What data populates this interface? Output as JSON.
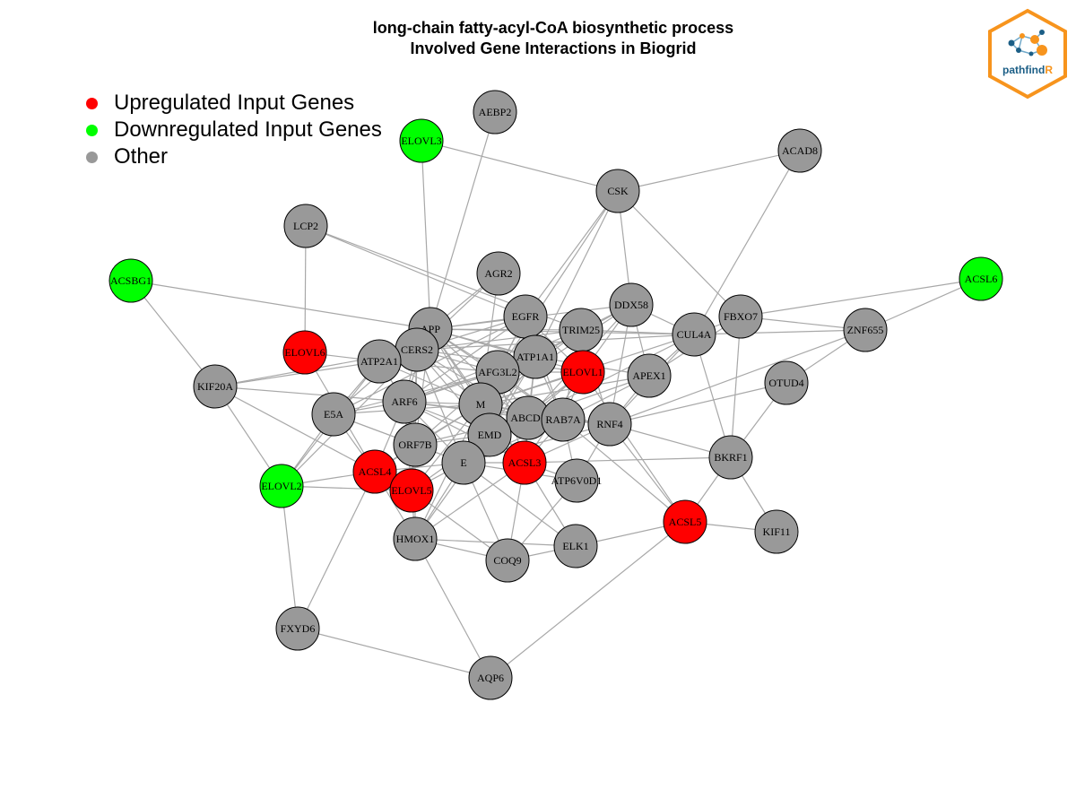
{
  "title": {
    "line1": "long-chain fatty-acyl-CoA biosynthetic process",
    "line2": "Involved Gene Interactions in Biogrid"
  },
  "legend": [
    {
      "label": "Upregulated Input Genes",
      "color": "#ff0000"
    },
    {
      "label": "Downregulated Input Genes",
      "color": "#00ff00"
    },
    {
      "label": "Other",
      "color": "#999999"
    }
  ],
  "logo": {
    "text_main": "pathfind",
    "text_accent": "R",
    "border_color": "#f7941d",
    "text_color": "#1b5e86"
  },
  "node_colors": {
    "up": "#ff0000",
    "down": "#00ff00",
    "other": "#999999"
  },
  "nodes": [
    {
      "id": "AEBP2",
      "type": "other"
    },
    {
      "id": "ELOVL3",
      "type": "down"
    },
    {
      "id": "ACAD8",
      "type": "other"
    },
    {
      "id": "CSK",
      "type": "other"
    },
    {
      "id": "LCP2",
      "type": "other"
    },
    {
      "id": "ACSBG1",
      "type": "down"
    },
    {
      "id": "ACSL6",
      "type": "down"
    },
    {
      "id": "AGR2",
      "type": "other"
    },
    {
      "id": "DDX58",
      "type": "other"
    },
    {
      "id": "EGFR",
      "type": "other"
    },
    {
      "id": "FBXO7",
      "type": "other"
    },
    {
      "id": "APP",
      "type": "other"
    },
    {
      "id": "TRIM25",
      "type": "other"
    },
    {
      "id": "CUL4A",
      "type": "other"
    },
    {
      "id": "ZNF655",
      "type": "other"
    },
    {
      "id": "ELOVL6",
      "type": "up"
    },
    {
      "id": "CERS2",
      "type": "other"
    },
    {
      "id": "ATP2A1",
      "type": "other"
    },
    {
      "id": "ATP1A1",
      "type": "other"
    },
    {
      "id": "AFG3L2",
      "type": "other"
    },
    {
      "id": "ELOVL1",
      "type": "up"
    },
    {
      "id": "APEX1",
      "type": "other"
    },
    {
      "id": "OTUD4",
      "type": "other"
    },
    {
      "id": "KIF20A",
      "type": "other"
    },
    {
      "id": "ARF6",
      "type": "other"
    },
    {
      "id": "M",
      "type": "other"
    },
    {
      "id": "E5A",
      "type": "other"
    },
    {
      "id": "ABCD1",
      "type": "other"
    },
    {
      "id": "RAB7A",
      "type": "other"
    },
    {
      "id": "RNF4",
      "type": "other"
    },
    {
      "id": "EMD",
      "type": "other"
    },
    {
      "id": "ORF7B",
      "type": "other"
    },
    {
      "id": "BKRF1",
      "type": "other"
    },
    {
      "id": "ACSL3",
      "type": "up"
    },
    {
      "id": "E",
      "type": "other"
    },
    {
      "id": "ACSL4",
      "type": "up"
    },
    {
      "id": "ATP6V0D1",
      "type": "other"
    },
    {
      "id": "ELOVL2",
      "type": "down"
    },
    {
      "id": "ELOVL5",
      "type": "up"
    },
    {
      "id": "ACSL5",
      "type": "up"
    },
    {
      "id": "KIF11",
      "type": "other"
    },
    {
      "id": "HMOX1",
      "type": "other"
    },
    {
      "id": "ELK1",
      "type": "other"
    },
    {
      "id": "COQ9",
      "type": "other"
    },
    {
      "id": "FXYD6",
      "type": "other"
    },
    {
      "id": "AQP6",
      "type": "other"
    }
  ],
  "edges": [
    [
      "AEBP2",
      "APP"
    ],
    [
      "ELOVL3",
      "APP"
    ],
    [
      "ELOVL3",
      "CSK"
    ],
    [
      "ACAD8",
      "CSK"
    ],
    [
      "ACAD8",
      "CUL4A"
    ],
    [
      "CSK",
      "EGFR"
    ],
    [
      "CSK",
      "DDX58"
    ],
    [
      "CSK",
      "FBXO7"
    ],
    [
      "CSK",
      "ATP1A1"
    ],
    [
      "CSK",
      "AFG3L2"
    ],
    [
      "LCP2",
      "ELOVL6"
    ],
    [
      "LCP2",
      "EGFR"
    ],
    [
      "LCP2",
      "TRIM25"
    ],
    [
      "ACSBG1",
      "KIF20A"
    ],
    [
      "ACSBG1",
      "APP"
    ],
    [
      "ACSL6",
      "FBXO7"
    ],
    [
      "ACSL6",
      "ZNF655"
    ],
    [
      "AGR2",
      "APP"
    ],
    [
      "AGR2",
      "CERS2"
    ],
    [
      "AGR2",
      "M"
    ],
    [
      "EGFR",
      "APP"
    ],
    [
      "EGFR",
      "CERS2"
    ],
    [
      "EGFR",
      "ATP1A1"
    ],
    [
      "EGFR",
      "AFG3L2"
    ],
    [
      "EGFR",
      "ARF6"
    ],
    [
      "EGFR",
      "M"
    ],
    [
      "EGFR",
      "ELOVL1"
    ],
    [
      "EGFR",
      "E5A"
    ],
    [
      "EGFR",
      "RAB7A"
    ],
    [
      "APP",
      "CERS2"
    ],
    [
      "APP",
      "ATP2A1"
    ],
    [
      "APP",
      "AFG3L2"
    ],
    [
      "APP",
      "M"
    ],
    [
      "APP",
      "ARF6"
    ],
    [
      "APP",
      "EMD"
    ],
    [
      "APP",
      "ORF7B"
    ],
    [
      "APP",
      "TRIM25"
    ],
    [
      "APP",
      "CUL4A"
    ],
    [
      "APP",
      "DDX58"
    ],
    [
      "APP",
      "RAB7A"
    ],
    [
      "APP",
      "ABCD1"
    ],
    [
      "APP",
      "ELOVL1"
    ],
    [
      "APP",
      "E5A"
    ],
    [
      "APP",
      "ACSL3"
    ],
    [
      "APP",
      "ATP1A1"
    ],
    [
      "TRIM25",
      "DDX58"
    ],
    [
      "TRIM25",
      "CUL4A"
    ],
    [
      "TRIM25",
      "M"
    ],
    [
      "TRIM25",
      "ATP1A1"
    ],
    [
      "TRIM25",
      "CERS2"
    ],
    [
      "TRIM25",
      "RAB7A"
    ],
    [
      "TRIM25",
      "RNF4"
    ],
    [
      "TRIM25",
      "ELOVL1"
    ],
    [
      "TRIM25",
      "ARF6"
    ],
    [
      "DDX58",
      "CUL4A"
    ],
    [
      "DDX58",
      "M"
    ],
    [
      "DDX58",
      "ATP1A1"
    ],
    [
      "DDX58",
      "RNF4"
    ],
    [
      "DDX58",
      "ABCD1"
    ],
    [
      "DDX58",
      "APEX1"
    ],
    [
      "DDX58",
      "ELOVL1"
    ],
    [
      "CUL4A",
      "FBXO7"
    ],
    [
      "CUL4A",
      "RNF4"
    ],
    [
      "CUL4A",
      "M"
    ],
    [
      "CUL4A",
      "APEX1"
    ],
    [
      "CUL4A",
      "ZNF655"
    ],
    [
      "CUL4A",
      "BKRF1"
    ],
    [
      "CUL4A",
      "ABCD1"
    ],
    [
      "CUL4A",
      "CERS2"
    ],
    [
      "FBXO7",
      "ZNF655"
    ],
    [
      "FBXO7",
      "BKRF1"
    ],
    [
      "FBXO7",
      "APEX1"
    ],
    [
      "ZNF655",
      "OTUD4"
    ],
    [
      "ZNF655",
      "RNF4"
    ],
    [
      "OTUD4",
      "BKRF1"
    ],
    [
      "OTUD4",
      "RNF4"
    ],
    [
      "ELOVL6",
      "ACSL4"
    ],
    [
      "ELOVL6",
      "ATP2A1"
    ],
    [
      "CERS2",
      "AFG3L2"
    ],
    [
      "CERS2",
      "M"
    ],
    [
      "CERS2",
      "ARF6"
    ],
    [
      "CERS2",
      "EMD"
    ],
    [
      "CERS2",
      "E"
    ],
    [
      "CERS2",
      "ELOVL5"
    ],
    [
      "CERS2",
      "ORF7B"
    ],
    [
      "CERS2",
      "ELOVL2"
    ],
    [
      "CERS2",
      "ABCD1"
    ],
    [
      "CERS2",
      "ELOVL1"
    ],
    [
      "ATP2A1",
      "E5A"
    ],
    [
      "ATP2A1",
      "ARF6"
    ],
    [
      "ATP2A1",
      "M"
    ],
    [
      "ATP2A1",
      "AFG3L2"
    ],
    [
      "ATP2A1",
      "ELOVL2"
    ],
    [
      "ATP1A1",
      "M"
    ],
    [
      "ATP1A1",
      "E"
    ],
    [
      "ATP1A1",
      "ABCD1"
    ],
    [
      "ATP1A1",
      "ACSL3"
    ],
    [
      "ATP1A1",
      "ARF6"
    ],
    [
      "ATP1A1",
      "RAB7A"
    ],
    [
      "ATP1A1",
      "APEX1"
    ],
    [
      "ATP1A1",
      "EMD"
    ],
    [
      "AFG3L2",
      "M"
    ],
    [
      "AFG3L2",
      "ARF6"
    ],
    [
      "AFG3L2",
      "E"
    ],
    [
      "AFG3L2",
      "ABCD1"
    ],
    [
      "AFG3L2",
      "RAB7A"
    ],
    [
      "AFG3L2",
      "EMD"
    ],
    [
      "AFG3L2",
      "ACSL3"
    ],
    [
      "AFG3L2",
      "ORF7B"
    ],
    [
      "AFG3L2",
      "ELOVL1"
    ],
    [
      "AFG3L2",
      "E5A"
    ],
    [
      "ELOVL1",
      "ACSL3"
    ],
    [
      "ELOVL1",
      "RAB7A"
    ],
    [
      "ELOVL1",
      "M"
    ],
    [
      "ELOVL1",
      "ABCD1"
    ],
    [
      "ELOVL1",
      "E"
    ],
    [
      "APEX1",
      "RNF4"
    ],
    [
      "APEX1",
      "M"
    ],
    [
      "APEX1",
      "ABCD1"
    ],
    [
      "APEX1",
      "RAB7A"
    ],
    [
      "KIF20A",
      "ACSL4"
    ],
    [
      "KIF20A",
      "ATP2A1"
    ],
    [
      "KIF20A",
      "ARF6"
    ],
    [
      "KIF20A",
      "CERS2"
    ],
    [
      "ARF6",
      "M"
    ],
    [
      "ARF6",
      "E"
    ],
    [
      "ARF6",
      "EMD"
    ],
    [
      "ARF6",
      "ORF7B"
    ],
    [
      "ARF6",
      "E5A"
    ],
    [
      "ARF6",
      "ACSL4"
    ],
    [
      "ARF6",
      "ABCD1"
    ],
    [
      "ARF6",
      "RAB7A"
    ],
    [
      "ARF6",
      "ACSL3"
    ],
    [
      "ARF6",
      "ELOVL5"
    ],
    [
      "M",
      "E"
    ],
    [
      "M",
      "EMD"
    ],
    [
      "M",
      "ORF7B"
    ],
    [
      "M",
      "E5A"
    ],
    [
      "M",
      "ABCD1"
    ],
    [
      "M",
      "RAB7A"
    ],
    [
      "M",
      "ACSL3"
    ],
    [
      "M",
      "RNF4"
    ],
    [
      "M",
      "ELOVL5"
    ],
    [
      "M",
      "HMOX1"
    ],
    [
      "M",
      "ACSL4"
    ],
    [
      "E5A",
      "ELOVL2"
    ],
    [
      "E5A",
      "ACSL4"
    ],
    [
      "E5A",
      "E"
    ],
    [
      "E5A",
      "ORF7B"
    ],
    [
      "ABCD1",
      "RAB7A"
    ],
    [
      "ABCD1",
      "E"
    ],
    [
      "ABCD1",
      "EMD"
    ],
    [
      "ABCD1",
      "RNF4"
    ],
    [
      "ABCD1",
      "ACSL3"
    ],
    [
      "ABCD1",
      "ORF7B"
    ],
    [
      "RAB7A",
      "RNF4"
    ],
    [
      "RAB7A",
      "EMD"
    ],
    [
      "RAB7A",
      "ACSL3"
    ],
    [
      "RAB7A",
      "E"
    ],
    [
      "RAB7A",
      "ATP6V0D1"
    ],
    [
      "RAB7A",
      "ACSL5"
    ],
    [
      "RNF4",
      "BKRF1"
    ],
    [
      "RNF4",
      "ACSL3"
    ],
    [
      "RNF4",
      "ATP6V0D1"
    ],
    [
      "RNF4",
      "ACSL5"
    ],
    [
      "RNF4",
      "E"
    ],
    [
      "EMD",
      "E"
    ],
    [
      "EMD",
      "ORF7B"
    ],
    [
      "EMD",
      "ACSL3"
    ],
    [
      "EMD",
      "HMOX1"
    ],
    [
      "EMD",
      "ELOVL5"
    ],
    [
      "ORF7B",
      "E"
    ],
    [
      "ORF7B",
      "ELOVL5"
    ],
    [
      "ORF7B",
      "HMOX1"
    ],
    [
      "ORF7B",
      "ACSL4"
    ],
    [
      "BKRF1",
      "KIF11"
    ],
    [
      "BKRF1",
      "ACSL5"
    ],
    [
      "BKRF1",
      "ACSL3"
    ],
    [
      "ACSL3",
      "E"
    ],
    [
      "ACSL3",
      "ATP6V0D1"
    ],
    [
      "ACSL3",
      "COQ9"
    ],
    [
      "ACSL3",
      "ELK1"
    ],
    [
      "ACSL3",
      "HMOX1"
    ],
    [
      "E",
      "ELOVL5"
    ],
    [
      "E",
      "HMOX1"
    ],
    [
      "E",
      "ACSL4"
    ],
    [
      "E",
      "COQ9"
    ],
    [
      "E",
      "ELK1"
    ],
    [
      "E",
      "ATP6V0D1"
    ],
    [
      "ACSL4",
      "ELOVL2"
    ],
    [
      "ACSL4",
      "ELOVL5"
    ],
    [
      "ACSL4",
      "FXYD6"
    ],
    [
      "ACSL4",
      "HMOX1"
    ],
    [
      "ATP6V0D1",
      "COQ9"
    ],
    [
      "ELOVL2",
      "FXYD6"
    ],
    [
      "ELOVL2",
      "KIF20A"
    ],
    [
      "ELOVL2",
      "ELOVL5"
    ],
    [
      "ELOVL5",
      "HMOX1"
    ],
    [
      "ELOVL5",
      "COQ9"
    ],
    [
      "ACSL5",
      "KIF11"
    ],
    [
      "ACSL5",
      "ELK1"
    ],
    [
      "ACSL5",
      "AQP6"
    ],
    [
      "HMOX1",
      "AQP6"
    ],
    [
      "HMOX1",
      "COQ9"
    ],
    [
      "COQ9",
      "ELK1"
    ],
    [
      "FXYD6",
      "AQP6"
    ],
    [
      "ELOVL1",
      "ACSL5"
    ],
    [
      "HMOX1",
      "ELK1"
    ]
  ]
}
